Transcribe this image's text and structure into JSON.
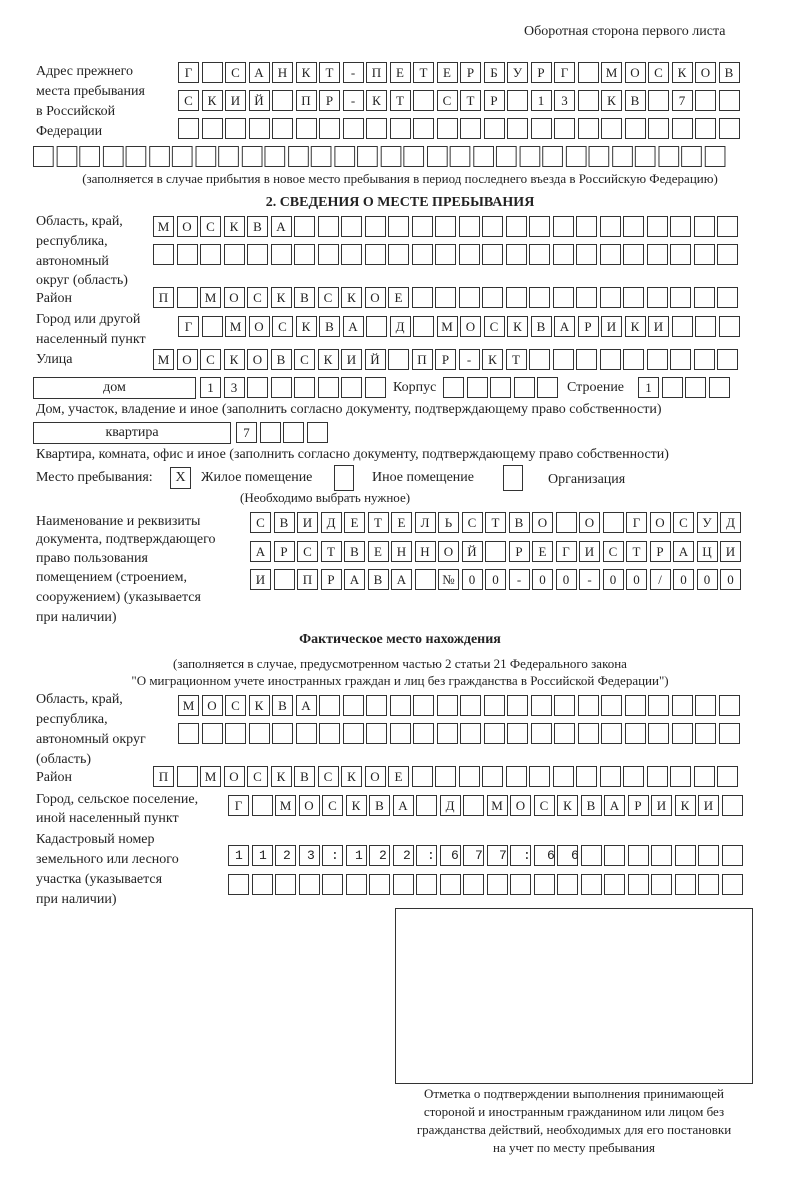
{
  "header": "Оборотная сторона первого листа",
  "prev_address": {
    "label": [
      "Адрес прежнего",
      "места пребывания",
      "в Российской",
      "Федерации"
    ],
    "rows": [
      "Г САНКТ-ПЕТЕРБУРГ МОСКОВ",
      "СКИЙ ПР-КТ СТР 13 КВ 7  ",
      "                        ",
      "                              "
    ],
    "note": "(заполняется в случае прибытия в новое место пребывания в период последнего въезда в Российскую Федерацию)"
  },
  "section2": {
    "title": "2. СВЕДЕНИЯ О МЕСТЕ ПРЕБЫВАНИЯ",
    "region_label": [
      "Область, край,",
      "республика,",
      "автономный",
      "округ (область)"
    ],
    "region_rows": [
      "МОСКВА                   ",
      "                         "
    ],
    "district_label": "Район",
    "district_row": "П МОСКВСКОЕ              ",
    "city_label": [
      "Город или другой",
      "населенный пункт"
    ],
    "city_row": "Г МОСКВА Д МОСКВАРИКИ   ",
    "street_label": "Улица",
    "street_row": "МОСКОВСКИЙ ПР-КТ         ",
    "house_type": "дом",
    "house_row": "13      ",
    "korpus_label": "Корпус",
    "korpus_row": "     ",
    "building_label": "Строение",
    "building_row": "1   ",
    "house_note": "Дом, участок, владение и иное (заполнить согласно документу, подтверждающему право собственности)",
    "flat_type": "квартира",
    "flat_row": "7   ",
    "flat_note": "Квартира, комната, офис и иное (заполнить согласно документу, подтверждающему право собственности)",
    "stay_label": "Место пребывания:",
    "options": [
      {
        "label": "Жилое помещение",
        "mark": "X"
      },
      {
        "label": "Иное помещение",
        "mark": ""
      },
      {
        "label": "Организация",
        "mark": ""
      }
    ],
    "choose_note": "(Необходимо выбрать нужное)",
    "doc_label": [
      "Наименование и реквизиты",
      "документа, подтверждающего",
      "право пользования",
      "помещением (строением,",
      "сооружением) (указывается",
      "при наличии)"
    ],
    "doc_rows": [
      "СВИДЕТЕЛЬСТВО О ГОСУД",
      "АРСТВЕННОЙ РЕГИСТРАЦИ",
      "И ПРАВА №00-00-00/000"
    ]
  },
  "actual": {
    "title": "Фактическое место нахождения",
    "note": [
      "(заполняется в случае, предусмотренном частью 2 статьи 21 Федерального закона",
      "\"О миграционном учете иностранных граждан и лиц без гражданства в Российской Федерации\")"
    ],
    "region_label": [
      "Область, край,",
      "республика,",
      "автономный округ",
      "(область)"
    ],
    "region_rows": [
      "МОСКВА                  ",
      "                        "
    ],
    "district_label": "Район",
    "district_row": "П МОСКВСКОЕ              ",
    "city_label": [
      "Город, сельское поселение,",
      "иной населенный пункт"
    ],
    "city_row": "Г МОСКВА Д МОСКВАРИКИ ",
    "cadastral_label": [
      "Кадастровый номер",
      "земельного или лесного",
      "участка (указывается",
      "при наличии)"
    ],
    "cadastral_rows": [
      "1123:122:677:66       ",
      "                      "
    ]
  },
  "stamp_caption": [
    "Отметка о подтверждении выполнения принимающей",
    "стороной и иностранным гражданином или лицом без",
    "гражданства действий, необходимых для его постановки",
    "на учет по месту пребывания"
  ]
}
